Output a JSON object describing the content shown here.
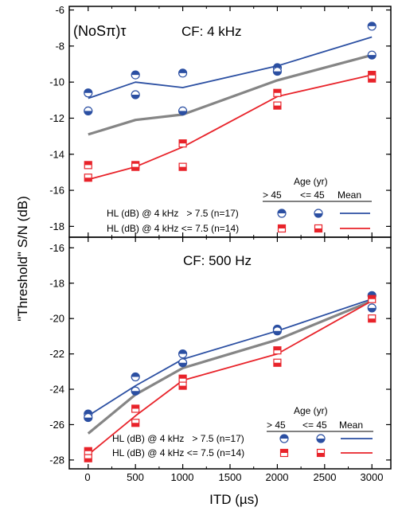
{
  "figure": {
    "y_axis_label": "\"Threshold\" S/N (dB)",
    "x_axis_label": "ITD (µs)",
    "x_ticks": [
      "0",
      "500",
      "1000",
      "1500",
      "2000",
      "2500",
      "3000"
    ],
    "legend_title": "Age (yr)",
    "legend_col_over": "> 45",
    "legend_col_under": "<= 45",
    "legend_col_mean": "Mean",
    "legend_row_blue": "HL (dB) @ 4 kHz   > 7.5 (n=17)",
    "legend_row_red": "HL (dB) @ 4 kHz <= 7.5 (n=14)"
  },
  "colors": {
    "blue": "#2b4fa2",
    "red": "#e8232a",
    "gray": "#858585",
    "axis": "#000000"
  },
  "markers": {
    "blue_over_45": "circle-top-half-filled",
    "blue_under_45": "circle-bottom-half-filled",
    "red_over_45": "square-top-half-filled",
    "red_under_45": "square-bottom-half-filled"
  },
  "chart_data": [
    {
      "type": "line",
      "panel": "top",
      "label_condition": "(NoSπ)τ",
      "title": "CF: 4 kHz",
      "xlim": [
        -200,
        3200
      ],
      "ylim": [
        -18.6,
        -5.8
      ],
      "yticks": [
        -18,
        -16,
        -14,
        -12,
        -10,
        -8,
        -6
      ],
      "series": [
        {
          "name": "HL (dB) @ 4 kHz > 7.5 (n=17) — Mean",
          "color": "blue",
          "x": [
            0,
            500,
            1000,
            2000,
            3000
          ],
          "y": [
            -10.9,
            -10.0,
            -10.3,
            -9.1,
            -7.5
          ]
        },
        {
          "name": "",
          "color": "gray",
          "x": [
            0,
            500,
            1000,
            2000,
            3000
          ],
          "y": [
            -12.9,
            -12.1,
            -11.8,
            -9.9,
            -8.5
          ]
        },
        {
          "name": "HL (dB) @ 4 kHz <= 7.5 (n=14) — Mean",
          "color": "red",
          "x": [
            0,
            500,
            1000,
            2000,
            3000
          ],
          "y": [
            -15.4,
            -14.7,
            -13.6,
            -10.8,
            -9.6
          ]
        }
      ],
      "points": [
        {
          "group": "blue_over_45",
          "x": [
            0,
            500,
            1000,
            2000,
            3000
          ],
          "y": [
            -10.6,
            -9.6,
            -9.5,
            -9.2,
            -6.9
          ]
        },
        {
          "group": "blue_under_45",
          "x": [
            0,
            500,
            1000,
            2000,
            3000
          ],
          "y": [
            -11.6,
            -10.7,
            -11.6,
            -9.4,
            -8.5
          ]
        },
        {
          "group": "red_over_45",
          "x": [
            0,
            500,
            1000,
            2000,
            3000
          ],
          "y": [
            -14.6,
            -14.6,
            -13.4,
            -10.6,
            -9.6
          ]
        },
        {
          "group": "red_under_45",
          "x": [
            0,
            500,
            1000,
            2000,
            3000
          ],
          "y": [
            -15.3,
            -14.7,
            -14.7,
            -11.3,
            -9.8
          ]
        }
      ]
    },
    {
      "type": "line",
      "panel": "bottom",
      "title": "CF: 500 Hz",
      "xlim": [
        -200,
        3200
      ],
      "ylim": [
        -28.5,
        -15.4
      ],
      "yticks": [
        -28,
        -26,
        -24,
        -22,
        -20,
        -18,
        -16
      ],
      "series": [
        {
          "name": "HL (dB) @ 4 kHz > 7.5 (n=17) — Mean",
          "color": "blue",
          "x": [
            0,
            500,
            1000,
            2000,
            3000
          ],
          "y": [
            -25.5,
            -23.8,
            -22.3,
            -20.7,
            -18.9
          ]
        },
        {
          "name": "",
          "color": "gray",
          "x": [
            0,
            500,
            1000,
            2000,
            3000
          ],
          "y": [
            -26.5,
            -24.3,
            -22.8,
            -21.2,
            -19.0
          ]
        },
        {
          "name": "HL (dB) @ 4 kHz <= 7.5 (n=14) — Mean",
          "color": "red",
          "x": [
            0,
            500,
            1000,
            2000,
            3000
          ],
          "y": [
            -27.7,
            -25.5,
            -23.5,
            -22.0,
            -19.0
          ]
        }
      ],
      "points": [
        {
          "group": "blue_over_45",
          "x": [
            0,
            500,
            1000,
            2000,
            3000
          ],
          "y": [
            -25.4,
            -23.3,
            -22.0,
            -20.6,
            -18.7
          ]
        },
        {
          "group": "blue_under_45",
          "x": [
            0,
            500,
            1000,
            2000,
            3000
          ],
          "y": [
            -25.6,
            -24.1,
            -22.5,
            -20.7,
            -19.4
          ]
        },
        {
          "group": "red_over_45",
          "x": [
            0,
            500,
            1000,
            2000,
            3000
          ],
          "y": [
            -27.5,
            -25.1,
            -23.4,
            -21.8,
            -18.9
          ]
        },
        {
          "group": "red_under_45",
          "x": [
            0,
            500,
            1000,
            2000,
            3000
          ],
          "y": [
            -27.9,
            -25.9,
            -23.8,
            -22.5,
            -20.0
          ]
        }
      ]
    }
  ]
}
